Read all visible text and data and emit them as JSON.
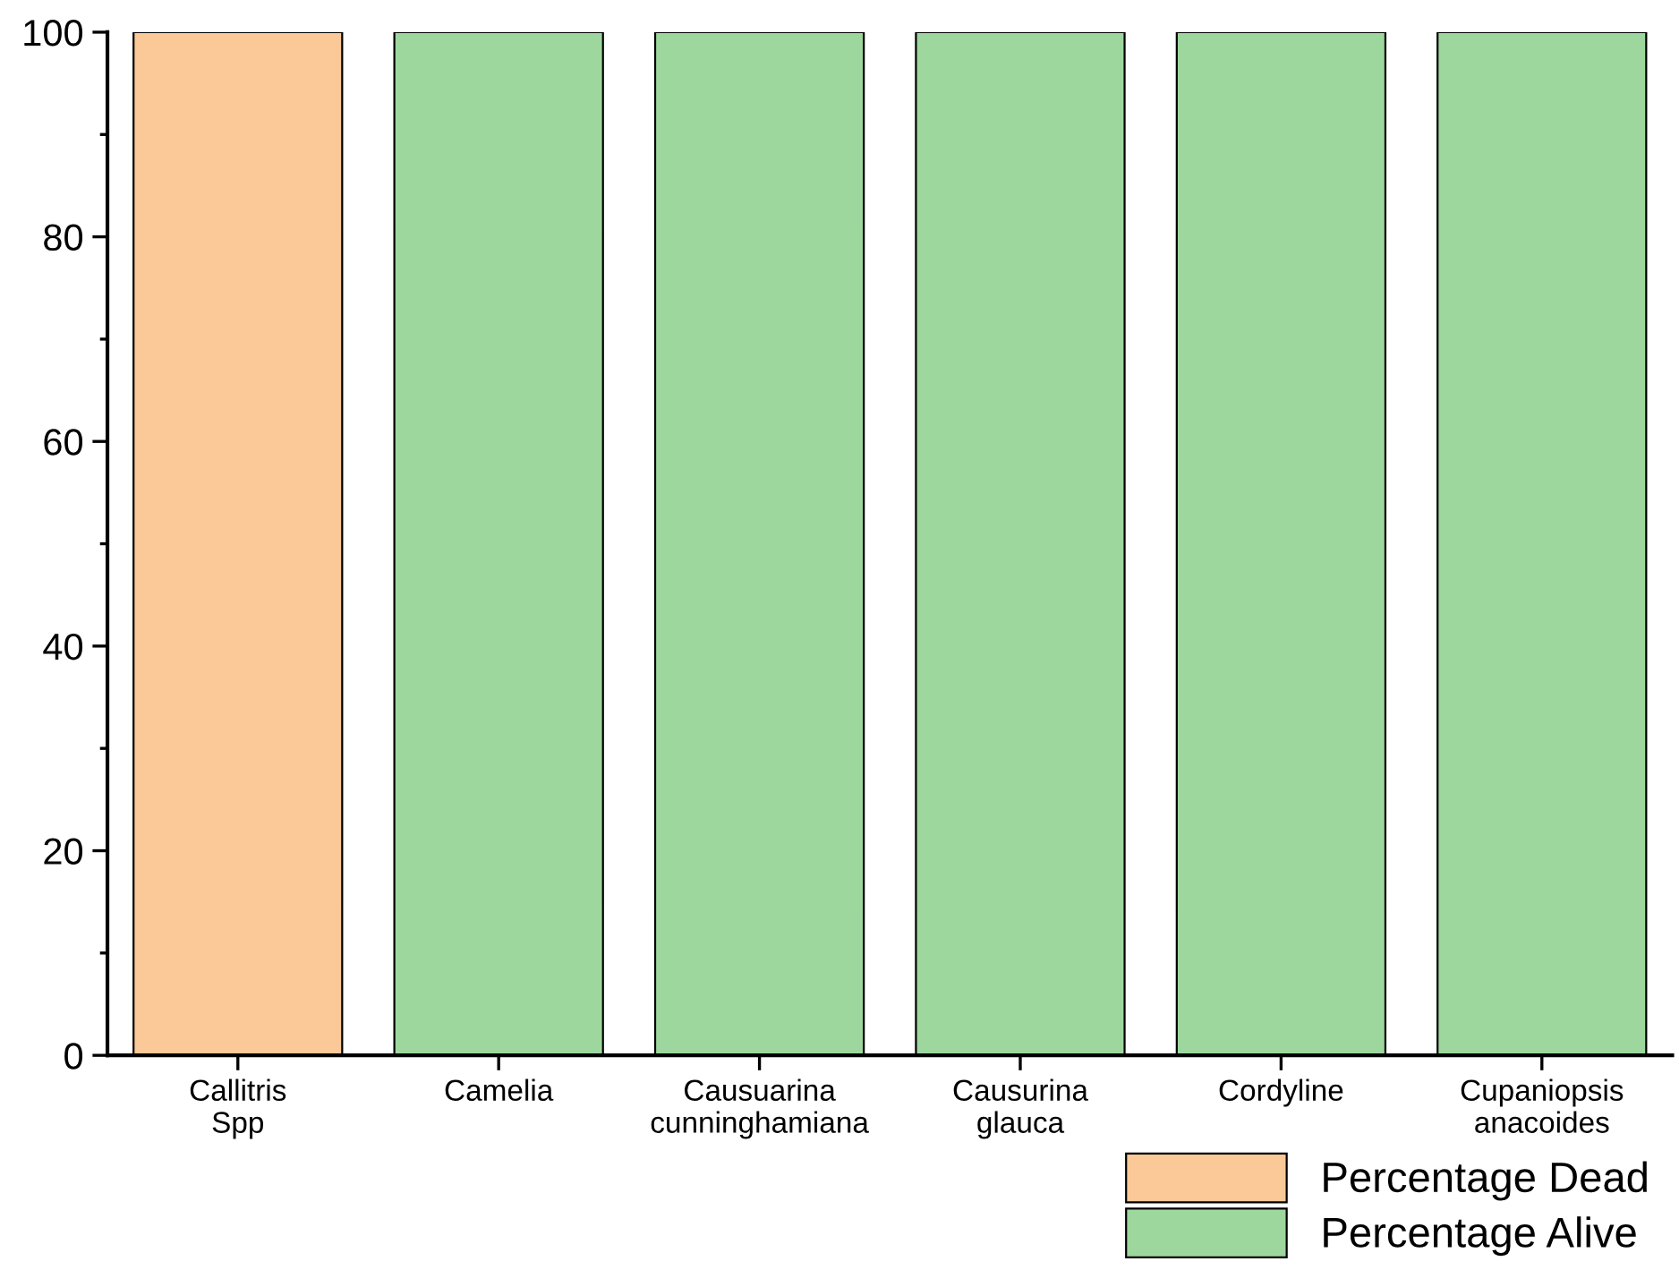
{
  "chart_data": {
    "type": "bar",
    "stacked": true,
    "categories": [
      "Callitris\nSpp",
      "Camelia",
      "Causuarina\ncunninghamiana",
      "Causurina\nglauca",
      "Cordyline",
      "Cupaniopsis\nanacoides"
    ],
    "series": [
      {
        "name": "Percentage Dead",
        "color": "#fbc897",
        "values": [
          100,
          0,
          0,
          0,
          0,
          0
        ]
      },
      {
        "name": "Percentage Alive",
        "color": "#9dd79d",
        "values": [
          0,
          100,
          100,
          100,
          100,
          100
        ]
      }
    ],
    "ylim": [
      0,
      100
    ],
    "yticks": [
      0,
      20,
      40,
      60,
      80,
      100
    ],
    "grid": false,
    "legend": "bottom right"
  }
}
